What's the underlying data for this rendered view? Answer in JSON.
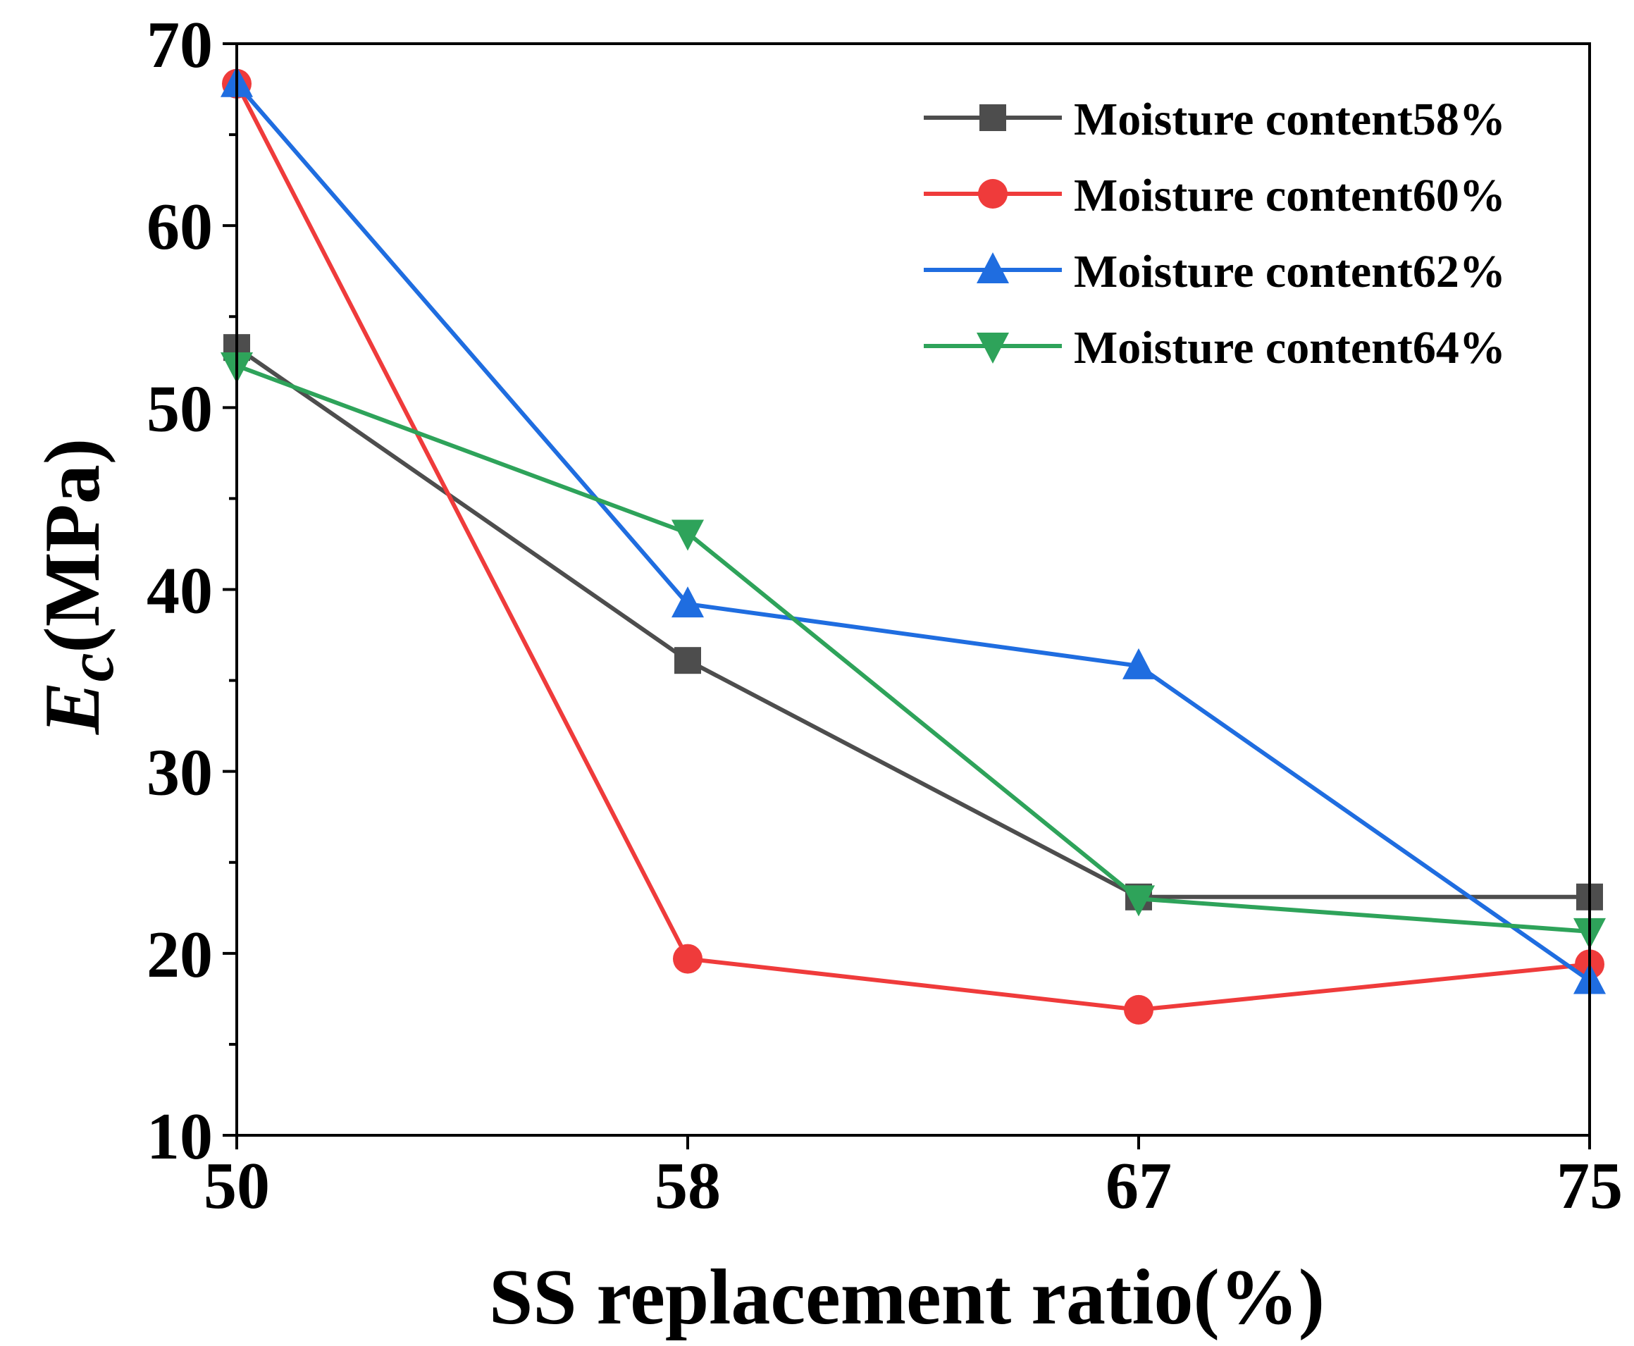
{
  "chart_data": {
    "type": "line",
    "title": "",
    "xlabel": "SS replacement ratio(%)",
    "ylabel_main": "E",
    "ylabel_sub": "c",
    "ylabel_rest": "(MPa)",
    "categories": [
      "50",
      "58",
      "67",
      "75"
    ],
    "yticks": [
      "10",
      "20",
      "30",
      "40",
      "50",
      "60",
      "70"
    ],
    "ylim": [
      10,
      70
    ],
    "grid": false,
    "legend_position": "top-right",
    "series": [
      {
        "name": "Moisture content58%",
        "color": "#4d4d4d",
        "marker": "square",
        "values": [
          53.3,
          36.1,
          23.1,
          23.1
        ]
      },
      {
        "name": "Moisture content60%",
        "color": "#ef3b3b",
        "marker": "circle",
        "values": [
          67.8,
          19.7,
          16.9,
          19.4
        ]
      },
      {
        "name": "Moisture content62%",
        "color": "#1f6de0",
        "marker": "triangle-up",
        "values": [
          67.8,
          39.2,
          35.8,
          18.5
        ]
      },
      {
        "name": "Moisture content64%",
        "color": "#2ea35a",
        "marker": "triangle-down",
        "values": [
          52.3,
          43.1,
          23.0,
          21.2
        ]
      }
    ]
  }
}
